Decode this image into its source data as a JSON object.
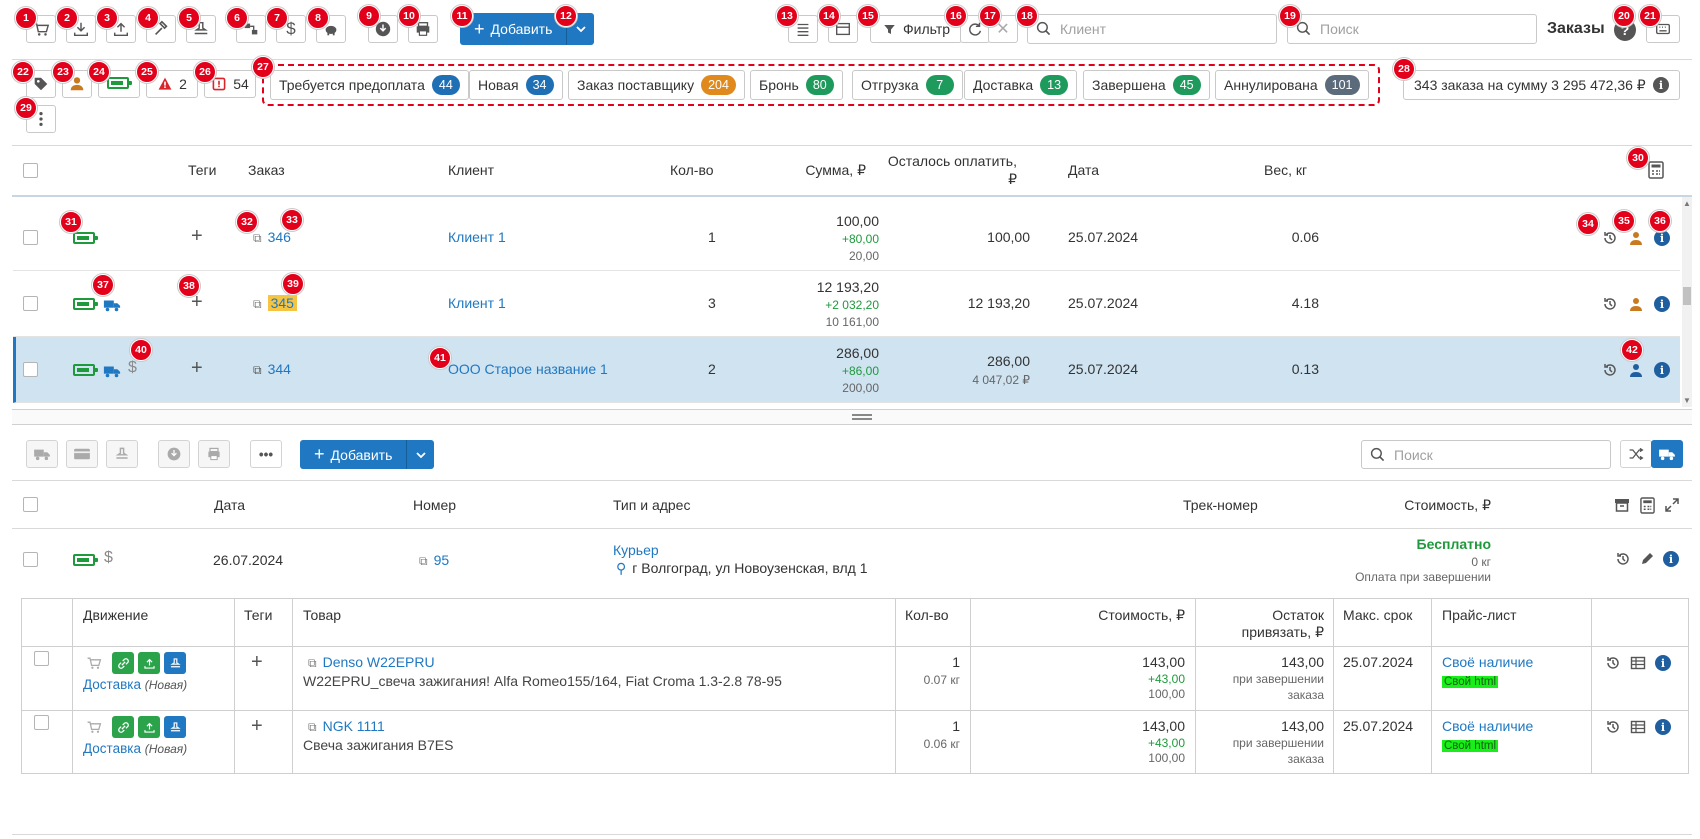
{
  "toolbar": {
    "add_label": "Добавить",
    "filter_label": "Фильтр",
    "client_placeholder": "Клиент",
    "search_placeholder": "Поиск",
    "title": "Заказы"
  },
  "badges": [
    "1",
    "2",
    "3",
    "4",
    "5",
    "6",
    "7",
    "8",
    "9",
    "10",
    "11",
    "12",
    "13",
    "14",
    "15",
    "16",
    "17",
    "18",
    "19",
    "20",
    "21",
    "22",
    "23",
    "24",
    "25",
    "26",
    "27",
    "28",
    "29",
    "30",
    "31",
    "32",
    "33",
    "34",
    "35",
    "36",
    "37",
    "38",
    "39",
    "40",
    "41",
    "42"
  ],
  "filters": {
    "warn_count": "2",
    "alert_count": "54",
    "summary": "343 заказа на сумму 3 295 472,36 ₽"
  },
  "statuses": [
    {
      "label": "Требуется предоплата",
      "count": "44",
      "color": "#1f6fb5"
    },
    {
      "label": "Новая",
      "count": "34",
      "color": "#1f6fb5"
    },
    {
      "label": "Заказ поставщику",
      "count": "204",
      "color": "#e08a1e"
    },
    {
      "label": "Бронь",
      "count": "80",
      "color": "#1e9a5c"
    },
    {
      "label": "Отгрузка",
      "count": "7",
      "color": "#1e9a5c"
    },
    {
      "label": "Доставка",
      "count": "13",
      "color": "#1e9a5c"
    },
    {
      "label": "Завершена",
      "count": "45",
      "color": "#1e9a5c"
    },
    {
      "label": "Аннулирована",
      "count": "101",
      "color": "#5b6b7b"
    }
  ],
  "orders_table": {
    "headers": {
      "tags": "Теги",
      "order": "Заказ",
      "client": "Клиент",
      "qty": "Кол-во",
      "sum": "Сумма, ₽",
      "remaining_1": "Осталось оплатить,",
      "remaining_2": "₽",
      "date": "Дата",
      "weight": "Вес, кг"
    },
    "rows": [
      {
        "order": "346",
        "client": "Клиент 1",
        "qty": "1",
        "sum": "100,00",
        "sum_plus": "+80,00",
        "sum_sub": "20,00",
        "remaining": "100,00",
        "remaining_sub": "",
        "date": "25.07.2024",
        "weight": "0.06"
      },
      {
        "order": "345",
        "client": "Клиент 1",
        "qty": "3",
        "sum": "12 193,20",
        "sum_plus": "+2 032,20",
        "sum_sub": "10 161,00",
        "remaining": "12 193,20",
        "remaining_sub": "",
        "date": "25.07.2024",
        "weight": "4.18"
      },
      {
        "order": "344",
        "client": "ООО Старое название 1",
        "qty": "2",
        "sum": "286,00",
        "sum_plus": "+86,00",
        "sum_sub": "200,00",
        "remaining": "286,00",
        "remaining_sub": "4 047,02 ₽",
        "date": "25.07.2024",
        "weight": "0.13"
      }
    ]
  },
  "shipments": {
    "add_label": "Добавить",
    "search_placeholder": "Поиск",
    "headers": {
      "date": "Дата",
      "number": "Номер",
      "type": "Тип и адрес",
      "track": "Трек-номер",
      "cost": "Стоимость, ₽"
    },
    "row": {
      "date": "26.07.2024",
      "number": "95",
      "type": "Курьер",
      "address": "г Волгоград, ул Новоузенская, влд 1",
      "cost": "Бесплатно",
      "weight": "0 кг",
      "payment": "Оплата при завершении"
    }
  },
  "items_table": {
    "headers": {
      "movement": "Движение",
      "tags": "Теги",
      "product": "Товар",
      "qty": "Кол-во",
      "cost": "Стоимость, ₽",
      "rest_1": "Остаток",
      "rest_2": "привязать, ₽",
      "max_term": "Макс. срок",
      "price_list": "Прайс-лист"
    },
    "rows": [
      {
        "movement": "Доставка",
        "movement_status": "(Новая)",
        "product": "Denso W22EPRU",
        "product_desc": "W22EPRU_свеча зажигания! Alfa Romeo155/164, Fiat Croma 1.3-2.8 78-95",
        "qty": "1",
        "qty_weight": "0.07 кг",
        "cost": "143,00",
        "cost_plus": "+43,00",
        "cost_sub": "100,00",
        "rest": "143,00",
        "rest_note_1": "при завершении",
        "rest_note_2": "заказа",
        "max_term": "25.07.2024",
        "price_list": "Своё наличие",
        "price_tag": "Свой html"
      },
      {
        "movement": "Доставка",
        "movement_status": "(Новая)",
        "product": "NGK 1111",
        "product_desc": "Свеча зажигания B7ES",
        "qty": "1",
        "qty_weight": "0.06 кг",
        "cost": "143,00",
        "cost_plus": "+43,00",
        "cost_sub": "100,00",
        "rest": "143,00",
        "rest_note_1": "при завершении",
        "rest_note_2": "заказа",
        "max_term": "25.07.2024",
        "price_list": "Своё наличие",
        "price_tag": "Свой html"
      }
    ]
  }
}
